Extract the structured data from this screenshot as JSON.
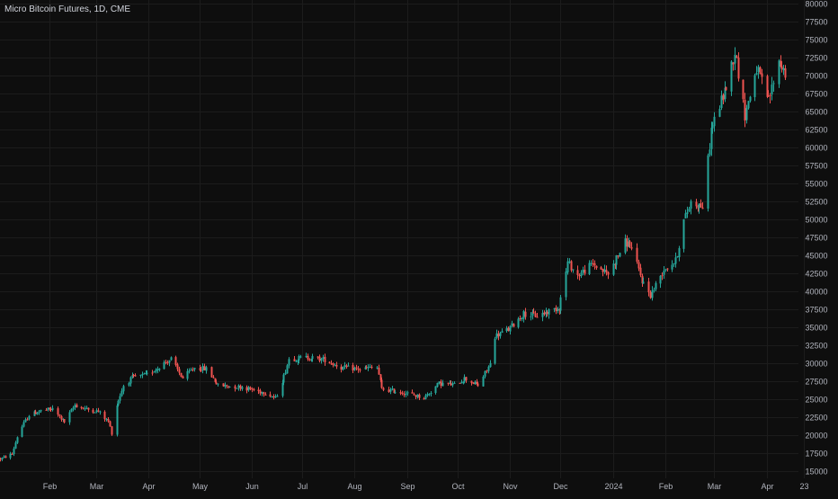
{
  "title": "Micro Bitcoin Futures, 1D, CME",
  "colors": {
    "background": "#0e0e0e",
    "grid": "#1c1c1c",
    "up": "#26a69a",
    "down": "#ef5350",
    "text": "#b2b5be"
  },
  "chart_data": {
    "type": "candlestick",
    "title": "Micro Bitcoin Futures, 1D, CME",
    "ylim": [
      14000,
      80500
    ],
    "y_ticks": [
      15000,
      17500,
      20000,
      22500,
      25000,
      27500,
      30000,
      32500,
      35000,
      37500,
      40000,
      42500,
      45000,
      47500,
      50000,
      52500,
      55000,
      57500,
      60000,
      62500,
      65000,
      67500,
      70000,
      72500,
      75000,
      77500,
      80000
    ],
    "x_labels": [
      {
        "label": "Feb",
        "date": "2023-02-01"
      },
      {
        "label": "Mar",
        "date": "2023-03-01"
      },
      {
        "label": "Apr",
        "date": "2023-04-01"
      },
      {
        "label": "May",
        "date": "2023-05-01"
      },
      {
        "label": "Jun",
        "date": "2023-06-01"
      },
      {
        "label": "Jul",
        "date": "2023-07-01"
      },
      {
        "label": "Aug",
        "date": "2023-08-01"
      },
      {
        "label": "Sep",
        "date": "2023-09-01"
      },
      {
        "label": "Oct",
        "date": "2023-10-01"
      },
      {
        "label": "Nov",
        "date": "2023-11-01"
      },
      {
        "label": "Dec",
        "date": "2023-12-01"
      },
      {
        "label": "2024",
        "date": "2024-01-01"
      },
      {
        "label": "Feb",
        "date": "2024-02-01"
      },
      {
        "label": "Mar",
        "date": "2024-03-01"
      },
      {
        "label": "Apr",
        "date": "2024-04-01"
      },
      {
        "label": "23",
        "date": "2024-04-23"
      }
    ],
    "grid": true,
    "date_range": [
      "2023-01-03",
      "2024-04-12"
    ],
    "close_path": [
      [
        "2023-01-03",
        16700
      ],
      [
        "2023-01-10",
        17400
      ],
      [
        "2023-01-13",
        19800
      ],
      [
        "2023-01-16",
        21200
      ],
      [
        "2023-01-20",
        22800
      ],
      [
        "2023-01-27",
        23400
      ],
      [
        "2023-02-03",
        23600
      ],
      [
        "2023-02-10",
        21800
      ],
      [
        "2023-02-16",
        24200
      ],
      [
        "2023-02-23",
        23600
      ],
      [
        "2023-03-02",
        23300
      ],
      [
        "2023-03-08",
        21900
      ],
      [
        "2023-03-10",
        20300
      ],
      [
        "2023-03-13",
        24200
      ],
      [
        "2023-03-17",
        26900
      ],
      [
        "2023-03-22",
        28000
      ],
      [
        "2023-03-31",
        28400
      ],
      [
        "2023-04-11",
        30200
      ],
      [
        "2023-04-14",
        30600
      ],
      [
        "2023-04-21",
        27900
      ],
      [
        "2023-04-28",
        29400
      ],
      [
        "2023-05-05",
        29200
      ],
      [
        "2023-05-12",
        26900
      ],
      [
        "2023-05-26",
        26700
      ],
      [
        "2023-06-05",
        26100
      ],
      [
        "2023-06-10",
        25900
      ],
      [
        "2023-06-15",
        25100
      ],
      [
        "2023-06-20",
        28200
      ],
      [
        "2023-06-23",
        30600
      ],
      [
        "2023-07-05",
        30800
      ],
      [
        "2023-07-14",
        30500
      ],
      [
        "2023-07-24",
        29400
      ],
      [
        "2023-08-04",
        29200
      ],
      [
        "2023-08-14",
        29400
      ],
      [
        "2023-08-17",
        26400
      ],
      [
        "2023-08-25",
        26100
      ],
      [
        "2023-09-01",
        25800
      ],
      [
        "2023-09-11",
        25200
      ],
      [
        "2023-09-20",
        27200
      ],
      [
        "2023-09-29",
        27000
      ],
      [
        "2023-10-05",
        27900
      ],
      [
        "2023-10-13",
        26900
      ],
      [
        "2023-10-17",
        28600
      ],
      [
        "2023-10-20",
        29900
      ],
      [
        "2023-10-23",
        33800
      ],
      [
        "2023-10-31",
        34700
      ],
      [
        "2023-11-09",
        36900
      ],
      [
        "2023-11-17",
        36600
      ],
      [
        "2023-11-30",
        37800
      ],
      [
        "2023-12-05",
        44000
      ],
      [
        "2023-12-11",
        42200
      ],
      [
        "2023-12-20",
        43800
      ],
      [
        "2023-12-29",
        42400
      ],
      [
        "2024-01-08",
        46800
      ],
      [
        "2024-01-11",
        46500
      ],
      [
        "2024-01-18",
        41500
      ],
      [
        "2024-01-23",
        39500
      ],
      [
        "2024-01-31",
        43100
      ],
      [
        "2024-02-07",
        44200
      ],
      [
        "2024-02-12",
        49800
      ],
      [
        "2024-02-16",
        52400
      ],
      [
        "2024-02-23",
        51800
      ],
      [
        "2024-02-28",
        62500
      ],
      [
        "2024-03-05",
        66500
      ],
      [
        "2024-03-08",
        68500
      ],
      [
        "2024-03-13",
        73400
      ],
      [
        "2024-03-19",
        64500
      ],
      [
        "2024-03-26",
        71000
      ],
      [
        "2024-04-02",
        66500
      ],
      [
        "2024-04-08",
        72000
      ],
      [
        "2024-04-12",
        70400
      ]
    ],
    "series": [
      {
        "type": "candles",
        "up_color": "#26a69a",
        "down_color": "#ef5350"
      }
    ]
  }
}
